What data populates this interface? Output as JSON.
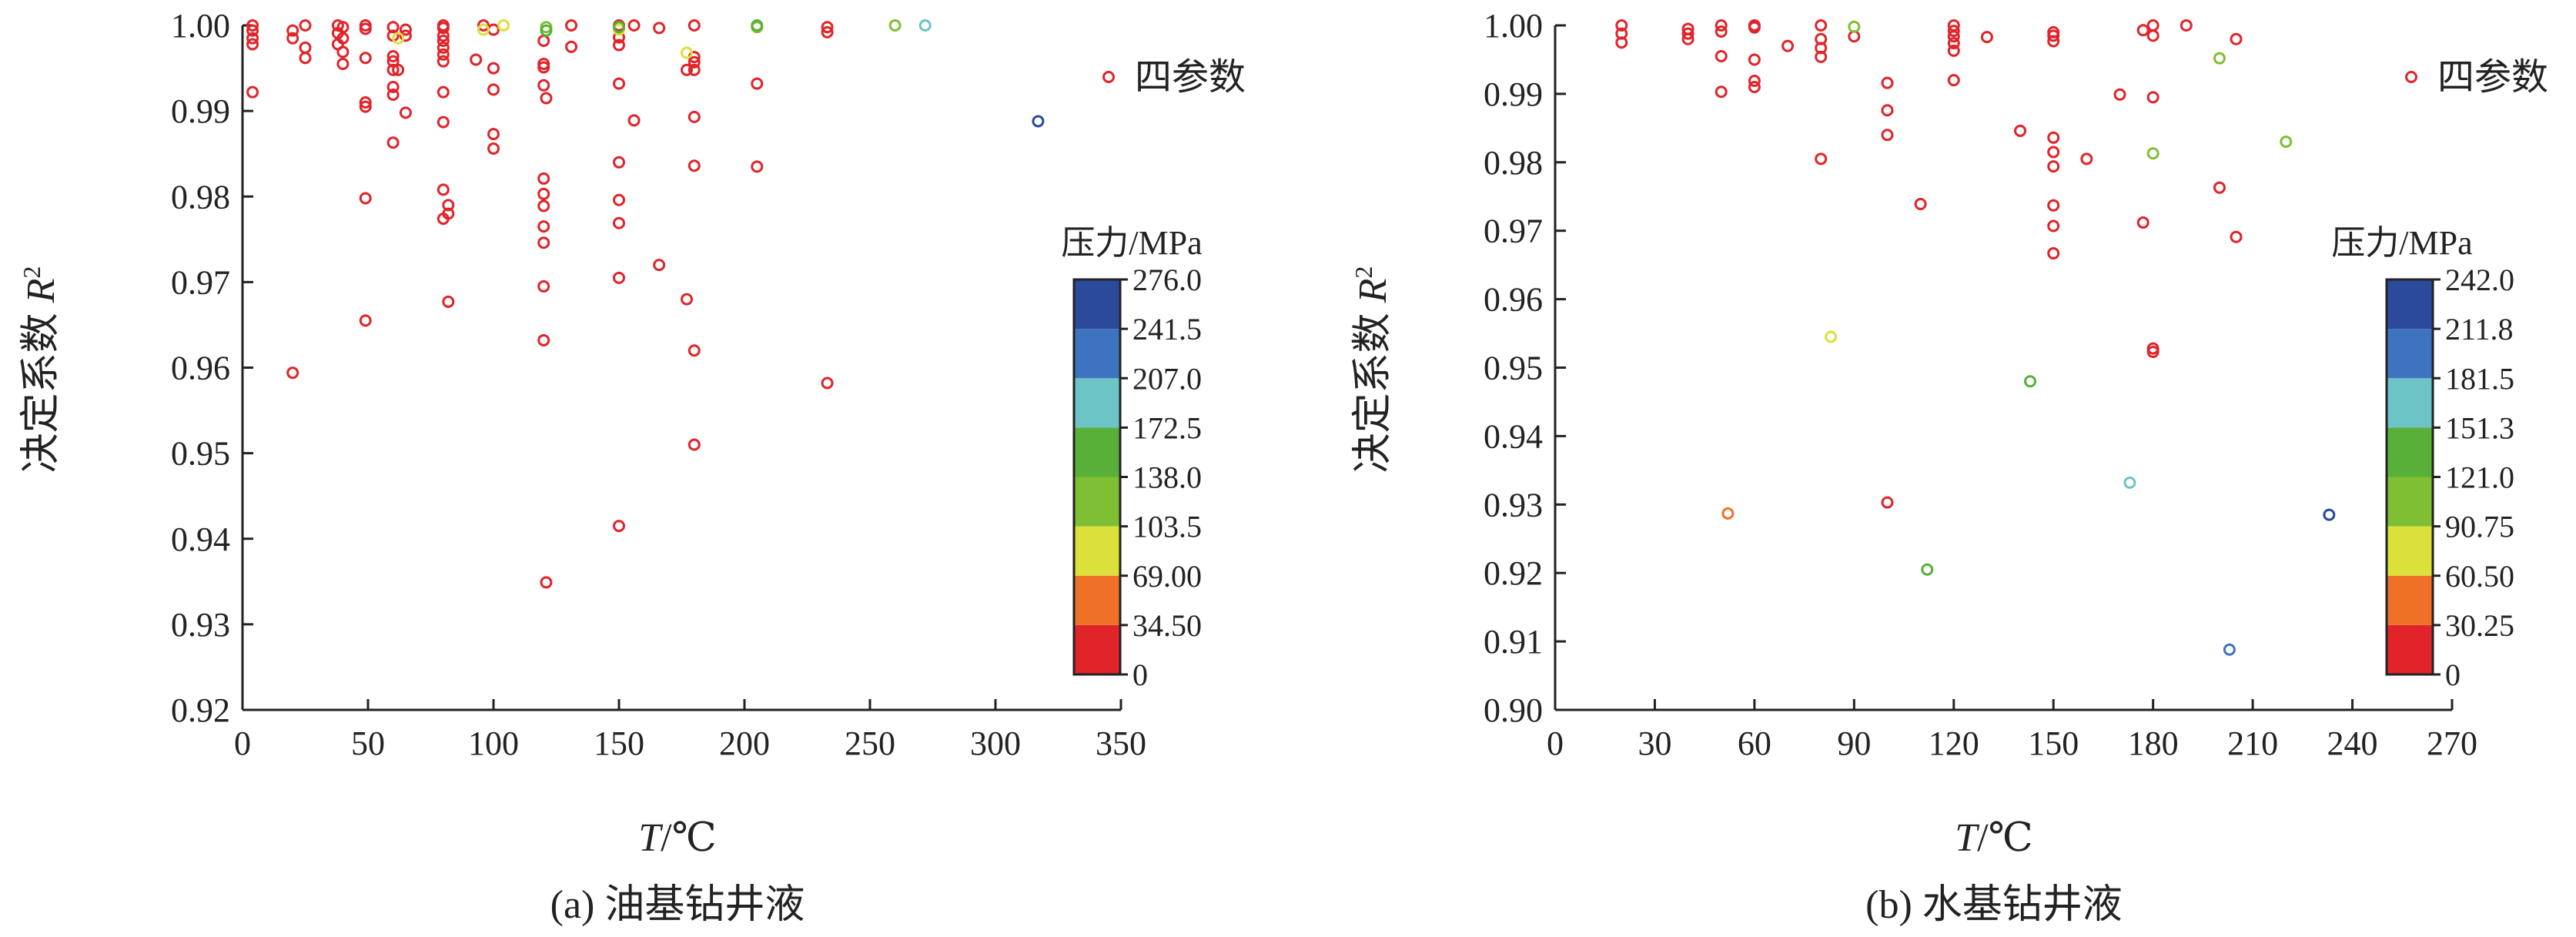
{
  "charts": {
    "a": {
      "caption": "(a) 油基钻井液",
      "ylabel_main": "决定系数 ",
      "ylabel_var": "R",
      "ylabel_sup": "2",
      "xlabel_var": "T",
      "xlabel_unit": "/℃",
      "legend_label": "四参数",
      "colorbar_title": "压力/MPa",
      "colorbar_ticks": [
        "276.0",
        "241.5",
        "207.0",
        "172.5",
        "138.0",
        "103.5",
        "69.00",
        "34.50",
        "0"
      ]
    },
    "b": {
      "caption": "(b) 水基钻井液",
      "ylabel_main": "决定系数 ",
      "ylabel_var": "R",
      "ylabel_sup": "2",
      "xlabel_var": "T",
      "xlabel_unit": "/℃",
      "legend_label": "四参数",
      "colorbar_title": "压力/MPa",
      "colorbar_ticks": [
        "242.0",
        "211.8",
        "181.5",
        "151.3",
        "121.0",
        "90.75",
        "60.50",
        "30.25",
        "0"
      ]
    }
  },
  "chart_data": [
    {
      "type": "scatter",
      "title": "(a) 油基钻井液",
      "xlabel": "T/℃",
      "ylabel": "决定系数 R²",
      "xlim": [
        0,
        350
      ],
      "ylim": [
        0.92,
        1.0
      ],
      "xticks": [
        0,
        50,
        100,
        150,
        200,
        250,
        300,
        350
      ],
      "yticks": [
        0.92,
        0.93,
        0.94,
        0.95,
        0.96,
        0.97,
        0.98,
        0.99,
        1.0
      ],
      "ytick_labels": [
        "0.92",
        "0.93",
        "0.94",
        "0.95",
        "0.96",
        "0.97",
        "0.98",
        "0.99",
        "1.00"
      ],
      "legend": "四参数",
      "legend_position": "top-right",
      "color_scale": {
        "title": "压力/MPa",
        "bounds": [
          0,
          34.5,
          69,
          103.5,
          138,
          172.5,
          207,
          241.5,
          276
        ],
        "colors": [
          "#e0242a",
          "#ee7127",
          "#dbe03a",
          "#7fbf34",
          "#58b038",
          "#6cc4c7",
          "#3e74bf",
          "#2b4a9c"
        ]
      },
      "points": [
        [
          4,
          1.0,
          0
        ],
        [
          4,
          0.9994,
          0
        ],
        [
          4,
          0.9985,
          0
        ],
        [
          4,
          0.9978,
          0
        ],
        [
          4,
          0.9922,
          0
        ],
        [
          20,
          0.9994,
          0
        ],
        [
          20,
          0.9985,
          0
        ],
        [
          20,
          0.9594,
          0
        ],
        [
          25,
          1.0,
          0
        ],
        [
          25,
          0.9974,
          0
        ],
        [
          25,
          0.9962,
          0
        ],
        [
          38,
          1.0,
          0
        ],
        [
          38,
          0.9991,
          0
        ],
        [
          38,
          0.9978,
          0
        ],
        [
          40,
          0.9998,
          0
        ],
        [
          40,
          0.9985,
          0
        ],
        [
          40,
          0.9969,
          0
        ],
        [
          40,
          0.9955,
          0
        ],
        [
          49,
          1.0,
          0
        ],
        [
          49,
          0.9996,
          0
        ],
        [
          49,
          0.9962,
          0
        ],
        [
          49,
          0.991,
          0
        ],
        [
          49,
          0.9905,
          0
        ],
        [
          49,
          0.9798,
          0
        ],
        [
          49,
          0.9655,
          0
        ],
        [
          60,
          0.9998,
          0
        ],
        [
          60,
          0.9988,
          0
        ],
        [
          60,
          0.9964,
          0
        ],
        [
          60,
          0.9948,
          0
        ],
        [
          60,
          0.9928,
          0
        ],
        [
          60,
          0.9919,
          0
        ],
        [
          60,
          0.9863,
          0
        ],
        [
          65,
          0.9995,
          0
        ],
        [
          65,
          0.9988,
          0
        ],
        [
          65,
          0.9898,
          0
        ],
        [
          80,
          1.0,
          0
        ],
        [
          80,
          0.9997,
          0
        ],
        [
          80,
          0.9988,
          0
        ],
        [
          80,
          0.9982,
          0
        ],
        [
          80,
          0.9974,
          0
        ],
        [
          80,
          0.9966,
          0
        ],
        [
          80,
          0.9958,
          0
        ],
        [
          80,
          0.9922,
          0
        ],
        [
          80,
          0.9887,
          0
        ],
        [
          80,
          0.9808,
          0
        ],
        [
          80,
          0.9774,
          0
        ],
        [
          82,
          0.979,
          0
        ],
        [
          82,
          0.978,
          0
        ],
        [
          82,
          0.9677,
          0
        ],
        [
          100,
          0.9995,
          0
        ],
        [
          100,
          0.995,
          0
        ],
        [
          100,
          0.9925,
          0
        ],
        [
          100,
          0.9873,
          0
        ],
        [
          100,
          0.9856,
          0
        ],
        [
          120,
          0.9982,
          0
        ],
        [
          120,
          0.9955,
          0
        ],
        [
          120,
          0.9951,
          0
        ],
        [
          120,
          0.993,
          0
        ],
        [
          120,
          0.9821,
          0
        ],
        [
          120,
          0.9803,
          0
        ],
        [
          120,
          0.9789,
          0
        ],
        [
          120,
          0.9765,
          0
        ],
        [
          120,
          0.9746,
          0
        ],
        [
          120,
          0.9695,
          0
        ],
        [
          120,
          0.9632,
          0
        ],
        [
          150,
          1.0,
          0
        ],
        [
          150,
          0.9986,
          0
        ],
        [
          150,
          0.9977,
          0
        ],
        [
          150,
          0.984,
          0
        ],
        [
          150,
          0.9796,
          0
        ],
        [
          150,
          0.9769,
          0
        ],
        [
          150,
          0.9705,
          0
        ],
        [
          150,
          0.9415,
          0
        ],
        [
          180,
          1.0,
          0
        ],
        [
          180,
          0.9963,
          0
        ],
        [
          180,
          0.9957,
          0
        ],
        [
          180,
          0.9948,
          0
        ],
        [
          180,
          0.9893,
          0
        ],
        [
          180,
          0.9836,
          0
        ],
        [
          180,
          0.962,
          0
        ],
        [
          180,
          0.951,
          0
        ],
        [
          60,
          0.9958,
          30
        ],
        [
          62,
          0.9948,
          30
        ],
        [
          93,
          0.996,
          30
        ],
        [
          96,
          1.0,
          30
        ],
        [
          121,
          0.9915,
          30
        ],
        [
          131,
          0.9975,
          30
        ],
        [
          131,
          1.0,
          30
        ],
        [
          150,
          0.9932,
          30
        ],
        [
          156,
          0.9889,
          30
        ],
        [
          156,
          1.0,
          30
        ],
        [
          166,
          0.9997,
          30
        ],
        [
          166,
          0.972,
          30
        ],
        [
          177,
          0.968,
          30
        ],
        [
          177,
          0.9948,
          30
        ],
        [
          205,
          0.9932,
          30
        ],
        [
          205,
          0.9835,
          30
        ],
        [
          233,
          0.9998,
          30
        ],
        [
          233,
          0.9992,
          30
        ],
        [
          233,
          0.9582,
          30
        ],
        [
          121,
          0.9349,
          30
        ],
        [
          62,
          0.9985,
          80
        ],
        [
          104,
          1.0,
          80
        ],
        [
          96,
          0.9995,
          80
        ],
        [
          150,
          0.9995,
          80
        ],
        [
          177,
          0.9968,
          80
        ],
        [
          121,
          0.9998,
          120
        ],
        [
          205,
          0.9998,
          120
        ],
        [
          260,
          1.0,
          120
        ],
        [
          121,
          0.9994,
          150
        ],
        [
          150,
          0.9998,
          150
        ],
        [
          205,
          1.0,
          150
        ],
        [
          272,
          1.0,
          190
        ],
        [
          317,
          0.9888,
          260
        ]
      ]
    },
    {
      "type": "scatter",
      "title": "(b) 水基钻井液",
      "xlabel": "T/℃",
      "ylabel": "决定系数 R²",
      "xlim": [
        0,
        270
      ],
      "ylim": [
        0.9,
        1.0
      ],
      "xticks": [
        0,
        30,
        60,
        90,
        120,
        150,
        180,
        210,
        240,
        270
      ],
      "yticks": [
        0.9,
        0.91,
        0.92,
        0.93,
        0.94,
        0.95,
        0.96,
        0.97,
        0.98,
        0.99,
        1.0
      ],
      "ytick_labels": [
        "0.90",
        "0.91",
        "0.92",
        "0.93",
        "0.94",
        "0.95",
        "0.96",
        "0.97",
        "0.98",
        "0.99",
        "1.00"
      ],
      "legend": "四参数",
      "legend_position": "top-right",
      "color_scale": {
        "title": "压力/MPa",
        "bounds": [
          0,
          30.25,
          60.5,
          90.75,
          121,
          151.3,
          181.5,
          211.8,
          242
        ],
        "colors": [
          "#e0242a",
          "#ee7127",
          "#dbe03a",
          "#7fbf34",
          "#58b038",
          "#6cc4c7",
          "#3e74bf",
          "#2b4a9c"
        ]
      },
      "points": [
        [
          20,
          1.0,
          0
        ],
        [
          20,
          0.9988,
          0
        ],
        [
          20,
          0.9975,
          0
        ],
        [
          40,
          0.9995,
          0
        ],
        [
          40,
          0.9988,
          0
        ],
        [
          40,
          0.998,
          0
        ],
        [
          50,
          1.0,
          0
        ],
        [
          50,
          0.9991,
          0
        ],
        [
          50,
          0.9955,
          0
        ],
        [
          50,
          0.9903,
          0
        ],
        [
          60,
          1.0,
          0
        ],
        [
          60,
          0.9997,
          0
        ],
        [
          60,
          0.995,
          0
        ],
        [
          60,
          0.9919,
          0
        ],
        [
          60,
          0.991,
          0
        ],
        [
          70,
          0.997,
          0
        ],
        [
          80,
          1.0,
          0
        ],
        [
          80,
          0.998,
          0
        ],
        [
          80,
          0.9967,
          0
        ],
        [
          80,
          0.9954,
          0
        ],
        [
          80,
          0.9805,
          0
        ],
        [
          90,
          0.9984,
          0
        ],
        [
          100,
          0.9916,
          0
        ],
        [
          100,
          0.9876,
          0
        ],
        [
          100,
          0.984,
          0
        ],
        [
          100,
          0.9303,
          0
        ],
        [
          110,
          0.9739,
          0
        ],
        [
          120,
          1.0,
          0
        ],
        [
          120,
          0.9992,
          0
        ],
        [
          120,
          0.9984,
          0
        ],
        [
          120,
          0.9974,
          0
        ],
        [
          120,
          0.9963,
          0
        ],
        [
          120,
          0.992,
          0
        ],
        [
          130,
          0.9983,
          0
        ],
        [
          140,
          0.9846,
          0
        ],
        [
          150,
          0.999,
          0
        ],
        [
          150,
          0.9985,
          0
        ],
        [
          150,
          0.9977,
          0
        ],
        [
          150,
          0.9836,
          0
        ],
        [
          150,
          0.9815,
          0
        ],
        [
          150,
          0.9794,
          0
        ],
        [
          150,
          0.9737,
          0
        ],
        [
          150,
          0.9707,
          0
        ],
        [
          150,
          0.9667,
          0
        ],
        [
          160,
          0.9805,
          0
        ],
        [
          170,
          0.9899,
          0
        ],
        [
          177,
          0.9993,
          0
        ],
        [
          177,
          0.9712,
          0
        ],
        [
          180,
          1.0,
          0
        ],
        [
          180,
          0.9985,
          0
        ],
        [
          180,
          0.9895,
          0
        ],
        [
          180,
          0.9528,
          0
        ],
        [
          180,
          0.9523,
          0
        ],
        [
          190,
          1.0,
          0
        ],
        [
          200,
          0.9763,
          0
        ],
        [
          205,
          0.998,
          0
        ],
        [
          205,
          0.9691,
          0
        ],
        [
          52,
          0.9287,
          45
        ],
        [
          83,
          0.9545,
          75
        ],
        [
          90,
          0.9998,
          100
        ],
        [
          180,
          0.9813,
          100
        ],
        [
          200,
          0.9952,
          100
        ],
        [
          220,
          0.983,
          100
        ],
        [
          112,
          0.9205,
          130
        ],
        [
          143,
          0.948,
          130
        ],
        [
          173,
          0.9332,
          165
        ],
        [
          203,
          0.9088,
          200
        ],
        [
          233,
          0.9285,
          235
        ]
      ]
    }
  ]
}
